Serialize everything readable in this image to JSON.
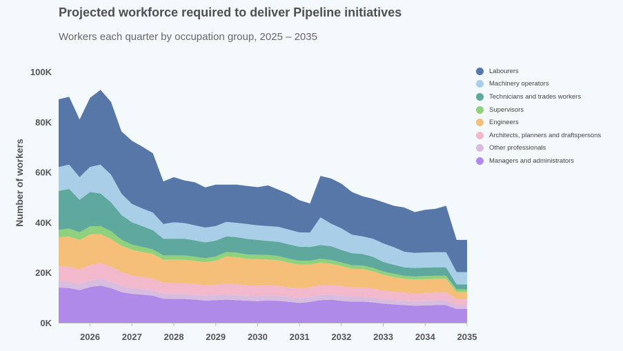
{
  "title": "Projected workforce required to deliver Pipeline initiatives",
  "subtitle": "Workers each quarter by occupation group, 2025 – 2035",
  "chart_data": {
    "type": "area",
    "stacked": true,
    "ylabel": "Number of workers",
    "xlabel": "",
    "ylim": [
      0,
      100000
    ],
    "xlim": [
      2025.25,
      2035.0
    ],
    "y_ticks": [
      0,
      20000,
      40000,
      60000,
      80000,
      100000
    ],
    "y_tick_labels": [
      "0K",
      "20K",
      "40K",
      "60K",
      "80K",
      "100K"
    ],
    "x_ticks": [
      2026,
      2027,
      2028,
      2029,
      2030,
      2031,
      2032,
      2033,
      2034,
      2035
    ],
    "x_tick_labels": [
      "2026",
      "2027",
      "2028",
      "2029",
      "2030",
      "2031",
      "2032",
      "2033",
      "2034",
      "2035"
    ],
    "grid": false,
    "legend_position": "right",
    "x": [
      2025.25,
      2025.5,
      2025.75,
      2026.0,
      2026.25,
      2026.5,
      2026.75,
      2027.0,
      2027.25,
      2027.5,
      2027.75,
      2028.0,
      2028.25,
      2028.5,
      2028.75,
      2029.0,
      2029.25,
      2029.5,
      2029.75,
      2030.0,
      2030.25,
      2030.5,
      2030.75,
      2031.0,
      2031.25,
      2031.5,
      2031.75,
      2032.0,
      2032.25,
      2032.5,
      2032.75,
      2033.0,
      2033.25,
      2033.5,
      2033.75,
      2034.0,
      2034.25,
      2034.5,
      2034.75,
      2035.0
    ],
    "series": [
      {
        "name": "Managers and administrators",
        "color": "#b08ae8",
        "values": [
          14000,
          13800,
          13000,
          14200,
          14800,
          13800,
          12200,
          11500,
          11200,
          10800,
          9600,
          9500,
          9500,
          9200,
          8800,
          9000,
          9200,
          9000,
          8800,
          8600,
          8900,
          8700,
          8300,
          7900,
          8300,
          9000,
          9200,
          8700,
          8400,
          8400,
          8100,
          7600,
          7300,
          7000,
          6800,
          6900,
          7000,
          7000,
          5500,
          5500
        ]
      },
      {
        "name": "Other professionals",
        "color": "#d8bde0",
        "values": [
          2500,
          2500,
          2400,
          2600,
          2700,
          2600,
          2400,
          2300,
          2200,
          2100,
          2000,
          2000,
          2000,
          2000,
          2000,
          2000,
          2000,
          2000,
          2000,
          2000,
          2000,
          2000,
          1900,
          1900,
          1900,
          2000,
          2000,
          2000,
          1900,
          1900,
          1900,
          1800,
          1800,
          1800,
          1800,
          1800,
          1800,
          1800,
          1500,
          1500
        ]
      },
      {
        "name": "Architects, planners and draftspersons",
        "color": "#f2b8cc",
        "values": [
          6000,
          6000,
          5800,
          6200,
          6300,
          6000,
          5600,
          5000,
          4800,
          4600,
          4300,
          4300,
          4300,
          4200,
          4100,
          4200,
          4400,
          4300,
          4200,
          4100,
          4100,
          4000,
          3900,
          3800,
          3900,
          4000,
          4000,
          3900,
          3800,
          3800,
          3600,
          3400,
          3300,
          3200,
          3100,
          3200,
          3200,
          3200,
          2500,
          2500
        ]
      },
      {
        "name": "Engineers",
        "color": "#f5be79",
        "values": [
          11500,
          12000,
          11800,
          12200,
          11500,
          11000,
          10500,
          10300,
          10000,
          9900,
          9200,
          9300,
          9300,
          9300,
          9200,
          9500,
          10800,
          10800,
          10500,
          10600,
          10200,
          10200,
          9800,
          9500,
          9100,
          9000,
          8300,
          8000,
          7400,
          7300,
          6900,
          6300,
          5800,
          5500,
          5500,
          5500,
          5500,
          5500,
          2800,
          2800
        ]
      },
      {
        "name": "Supervisors",
        "color": "#8fd17c",
        "values": [
          3000,
          3200,
          3000,
          3200,
          3200,
          3100,
          2400,
          2000,
          2000,
          1800,
          1700,
          1700,
          1700,
          1600,
          1600,
          1700,
          1800,
          1800,
          1700,
          1800,
          1800,
          1700,
          1600,
          1600,
          1500,
          1500,
          1500,
          1400,
          1400,
          1400,
          1400,
          1300,
          1300,
          1200,
          1200,
          1200,
          1200,
          1200,
          1000,
          1000
        ]
      },
      {
        "name": "Technicians and trades workers",
        "color": "#5fa89e",
        "values": [
          15500,
          15800,
          13000,
          13700,
          13000,
          11500,
          9800,
          8900,
          8300,
          7700,
          6700,
          6700,
          6700,
          6500,
          6300,
          6300,
          6200,
          6200,
          6200,
          5900,
          5600,
          5600,
          5700,
          5600,
          5500,
          5500,
          5500,
          5000,
          4800,
          4600,
          4400,
          3800,
          3600,
          3400,
          3400,
          3400,
          3400,
          3400,
          2000,
          2000
        ]
      },
      {
        "name": "Machinery operators",
        "color": "#a9cfe8",
        "values": [
          9500,
          9700,
          9000,
          10000,
          11500,
          11000,
          8500,
          7300,
          7000,
          7000,
          5800,
          6500,
          6200,
          6000,
          5900,
          5800,
          5800,
          5700,
          5900,
          5800,
          5900,
          6000,
          5900,
          5700,
          5700,
          11000,
          9000,
          8600,
          7400,
          7000,
          7200,
          7400,
          7000,
          6200,
          6000,
          6000,
          6000,
          6000,
          4900,
          4900
        ]
      },
      {
        "name": "Labourers",
        "color": "#5777a8",
        "values": [
          27000,
          27000,
          23000,
          27500,
          29800,
          29000,
          24800,
          25200,
          24600,
          23600,
          17000,
          18000,
          17000,
          17200,
          16000,
          16500,
          14800,
          15200,
          15200,
          15200,
          16200,
          14800,
          14200,
          12800,
          11600,
          16500,
          18000,
          17800,
          17000,
          16000,
          15900,
          16400,
          16500,
          17600,
          16300,
          17000,
          17300,
          18500,
          12800,
          12800
        ]
      }
    ]
  }
}
